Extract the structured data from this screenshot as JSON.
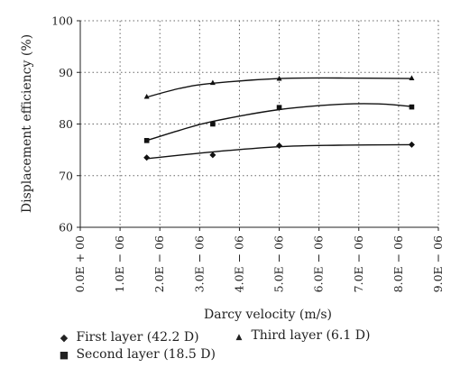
{
  "chart_data": {
    "type": "scatter",
    "title": "",
    "xlabel": "Darcy velocity (m/s)",
    "ylabel": "Displacement efficiency (%)",
    "xlim": [
      0,
      9e-06
    ],
    "ylim": [
      60,
      100
    ],
    "x_ticks": [
      "0.0E + 00",
      "1.0E − 06",
      "2.0E − 06",
      "3.0E − 06",
      "4.0E − 06",
      "5.0E − 06",
      "6.0E − 06",
      "7.0E − 06",
      "8.0E − 06",
      "9.0E − 06"
    ],
    "y_ticks": [
      "60",
      "70",
      "80",
      "90",
      "100"
    ],
    "grid": true,
    "legend_placement": "bottom",
    "series": [
      {
        "name": "First layer (42.2 D)",
        "marker": "diamond",
        "x": [
          1.67e-06,
          3.33e-06,
          5e-06,
          8.33e-06
        ],
        "y": [
          73.5,
          74.0,
          75.8,
          76.0
        ]
      },
      {
        "name": "Second layer (18.5 D)",
        "marker": "square",
        "x": [
          1.67e-06,
          3.33e-06,
          5e-06,
          8.33e-06
        ],
        "y": [
          76.8,
          80.0,
          83.2,
          83.3
        ]
      },
      {
        "name": "Third layer (6.1 D)",
        "marker": "triangle",
        "x": [
          1.67e-06,
          3.33e-06,
          5e-06,
          8.33e-06
        ],
        "y": [
          85.3,
          88.0,
          88.8,
          88.9
        ]
      }
    ],
    "trendlines": [
      {
        "series": "First layer (42.2 D)",
        "x": [
          1.67e-06,
          3.33e-06,
          5e-06,
          6.5e-06,
          8.33e-06
        ],
        "y": [
          73.3,
          74.6,
          75.6,
          75.9,
          76.0
        ]
      },
      {
        "series": "Second layer (18.5 D)",
        "x": [
          1.67e-06,
          2.5e-06,
          3.33e-06,
          5e-06,
          6.5e-06,
          7.5e-06,
          8.33e-06
        ],
        "y": [
          76.8,
          78.8,
          80.5,
          82.8,
          83.8,
          83.9,
          83.4
        ]
      },
      {
        "series": "Third layer (6.1 D)",
        "x": [
          1.67e-06,
          2.5e-06,
          3.33e-06,
          5e-06,
          6.5e-06,
          8.33e-06
        ],
        "y": [
          85.2,
          86.9,
          87.9,
          88.8,
          88.9,
          88.8
        ]
      }
    ]
  }
}
